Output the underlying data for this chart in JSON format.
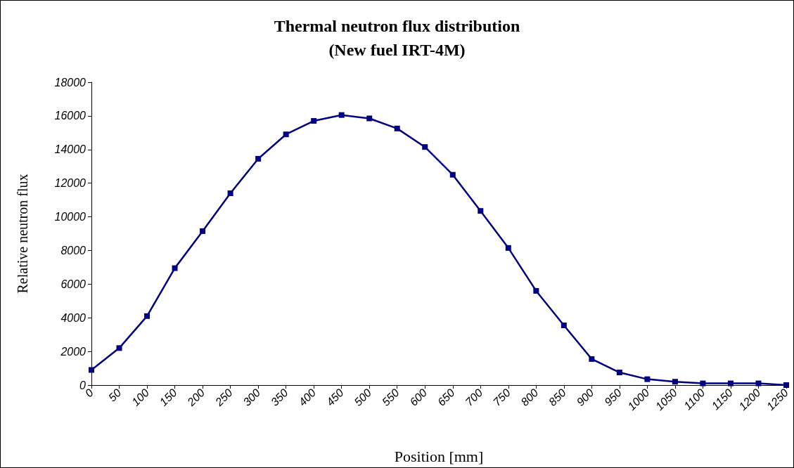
{
  "chart_data": {
    "type": "line",
    "title": "Thermal neutron flux distribution\n(New fuel IRT-4M)",
    "xlabel": "Position [mm]",
    "ylabel": "Relative neutron flux",
    "categories": [
      "0",
      "50",
      "100",
      "150",
      "200",
      "250",
      "300",
      "350",
      "400",
      "450",
      "500",
      "550",
      "600",
      "650",
      "700",
      "750",
      "800",
      "850",
      "900",
      "950",
      "1000",
      "1050",
      "1100",
      "1150",
      "1200",
      "1250"
    ],
    "series": [
      {
        "color": "#000080",
        "values": [
          900,
          2200,
          4100,
          6950,
          9150,
          11400,
          13450,
          14900,
          15700,
          16050,
          15850,
          15250,
          14150,
          12500,
          10350,
          8150,
          5600,
          3550,
          1550,
          750,
          350,
          200,
          100,
          100,
          100,
          0
        ]
      }
    ],
    "ylim": [
      0,
      18000
    ],
    "yticks": [
      0,
      2000,
      4000,
      6000,
      8000,
      10000,
      12000,
      14000,
      16000,
      18000
    ],
    "marker": "square",
    "line_style": "solid"
  }
}
